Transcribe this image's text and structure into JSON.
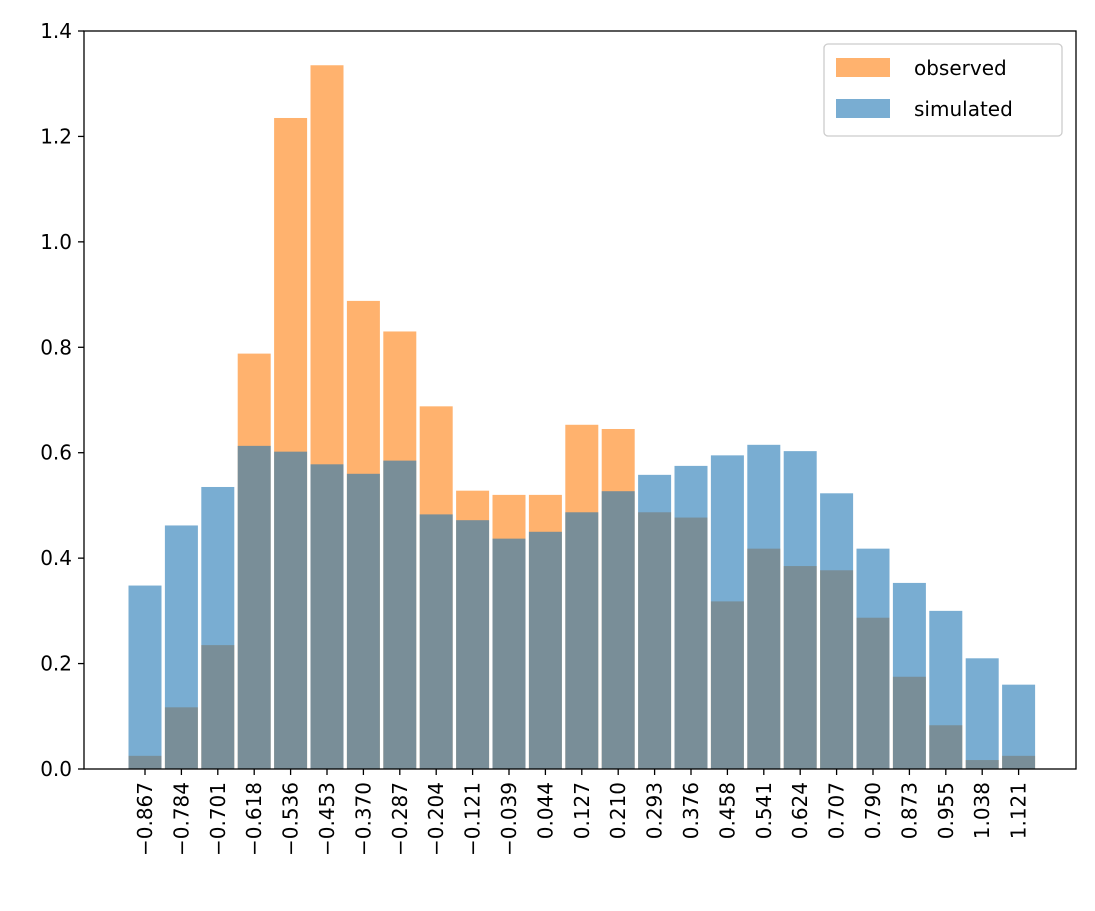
{
  "chart_data": {
    "type": "bar",
    "title": "",
    "xlabel": "",
    "ylabel": "",
    "ylim": [
      0,
      1.4
    ],
    "yticks": [
      "0.0",
      "0.2",
      "0.4",
      "0.6",
      "0.8",
      "1.0",
      "1.2",
      "1.4"
    ],
    "categories": [
      "−0.867",
      "−0.784",
      "−0.701",
      "−0.618",
      "−0.536",
      "−0.453",
      "−0.370",
      "−0.287",
      "−0.204",
      "−0.121",
      "−0.039",
      "0.044",
      "0.127",
      "0.210",
      "0.293",
      "0.376",
      "0.458",
      "0.541",
      "0.624",
      "0.707",
      "0.790",
      "0.873",
      "0.955",
      "1.038",
      "1.121"
    ],
    "series": [
      {
        "name": "observed",
        "color": "#ff7f0e",
        "values": [
          0.025,
          0.117,
          0.235,
          0.788,
          1.235,
          1.335,
          0.888,
          0.83,
          0.688,
          0.528,
          0.52,
          0.52,
          0.653,
          0.645,
          0.487,
          0.477,
          0.318,
          0.418,
          0.385,
          0.377,
          0.287,
          0.175,
          0.083,
          0.017,
          0.025
        ]
      },
      {
        "name": "simulated",
        "color": "#1f77b4",
        "values": [
          0.348,
          0.462,
          0.535,
          0.613,
          0.602,
          0.578,
          0.56,
          0.585,
          0.483,
          0.472,
          0.437,
          0.45,
          0.487,
          0.527,
          0.558,
          0.575,
          0.595,
          0.615,
          0.603,
          0.523,
          0.418,
          0.353,
          0.3,
          0.21,
          0.16
        ]
      }
    ],
    "bar_alpha": 0.6,
    "legend_position": "upper right",
    "grid": false
  }
}
